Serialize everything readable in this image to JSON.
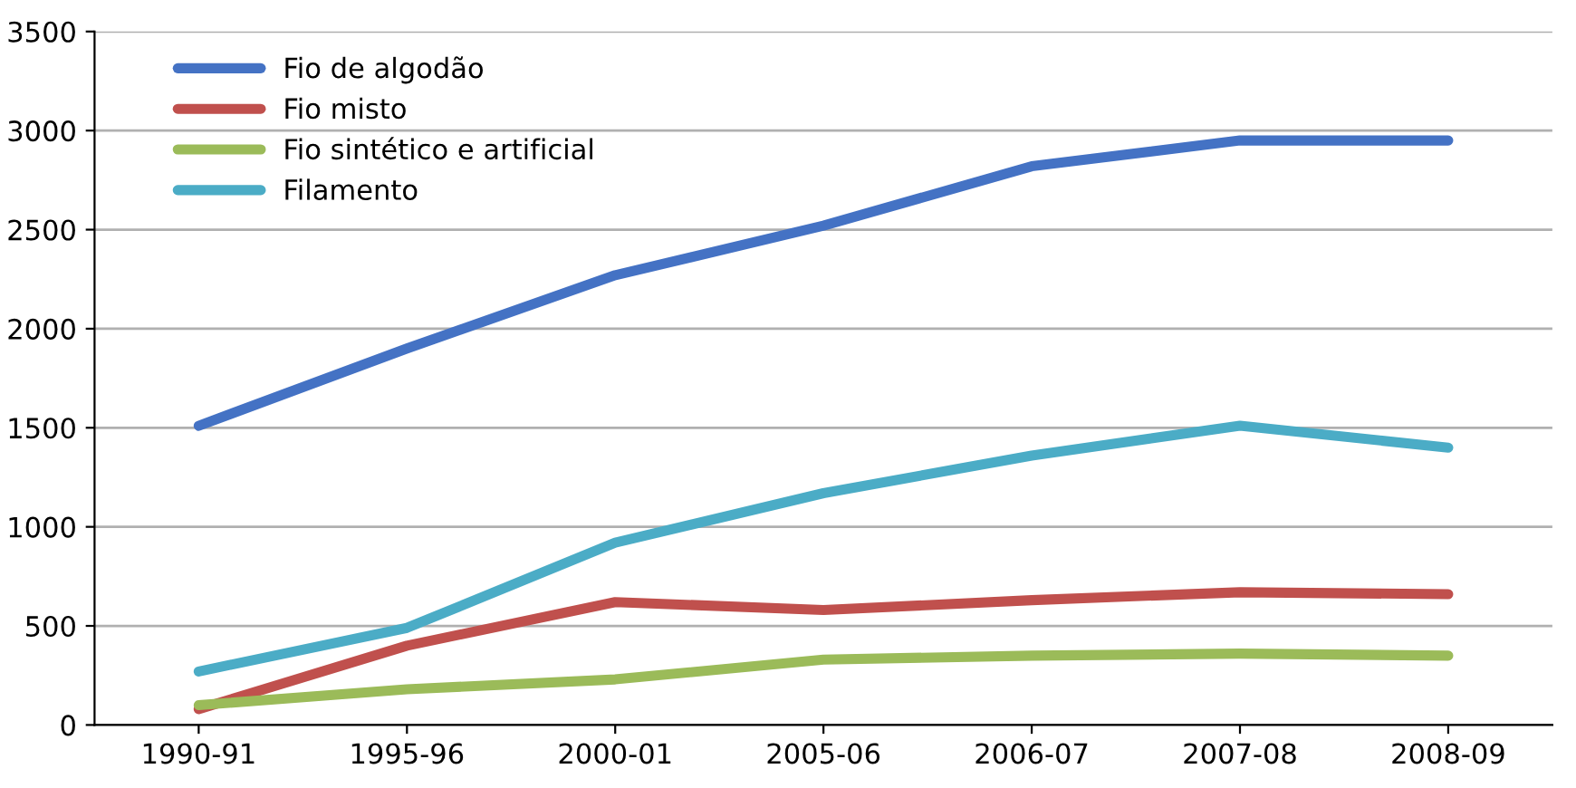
{
  "chart_data": {
    "type": "line",
    "categories": [
      "1990-91",
      "1995-96",
      "2000-01",
      "2005-06",
      "2006-07",
      "2007-08",
      "2008-09"
    ],
    "series": [
      {
        "name": "Fio de algodão",
        "color": "#4472c4",
        "values": [
          1510,
          1900,
          2270,
          2520,
          2820,
          2950,
          2950
        ]
      },
      {
        "name": "Fio misto",
        "color": "#c0504d",
        "values": [
          80,
          400,
          620,
          580,
          630,
          670,
          660
        ]
      },
      {
        "name": "Fio sintético e artificial",
        "color": "#9bbb59",
        "values": [
          100,
          180,
          230,
          330,
          350,
          360,
          350
        ]
      },
      {
        "name": "Filamento",
        "color": "#4bacc6",
        "values": [
          270,
          490,
          920,
          1170,
          1360,
          1510,
          1400
        ]
      }
    ],
    "ylim": [
      0,
      3500
    ],
    "yticks": [
      0,
      500,
      1000,
      1500,
      2000,
      2500,
      3000,
      3500
    ],
    "grid": "y",
    "legend": "top left",
    "marker": "none",
    "line_style": "solid"
  }
}
